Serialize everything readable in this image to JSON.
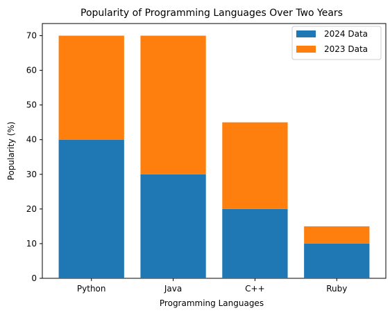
{
  "chart_data": {
    "type": "bar",
    "stacked": true,
    "title": "Popularity of Programming Languages Over Two Years",
    "xlabel": "Programming Languages",
    "ylabel": "Popularity (%)",
    "categories": [
      "Python",
      "Java",
      "C++",
      "Ruby"
    ],
    "series": [
      {
        "name": "2024 Data",
        "color": "#1f77b4",
        "values": [
          40,
          30,
          20,
          10
        ]
      },
      {
        "name": "2023 Data",
        "color": "#ff7f0e",
        "values": [
          30,
          40,
          25,
          5
        ]
      }
    ],
    "ylim": [
      0,
      73.5
    ],
    "yticks": [
      0,
      10,
      20,
      30,
      40,
      50,
      60,
      70
    ],
    "grid": false,
    "legend_position": "top-right"
  }
}
